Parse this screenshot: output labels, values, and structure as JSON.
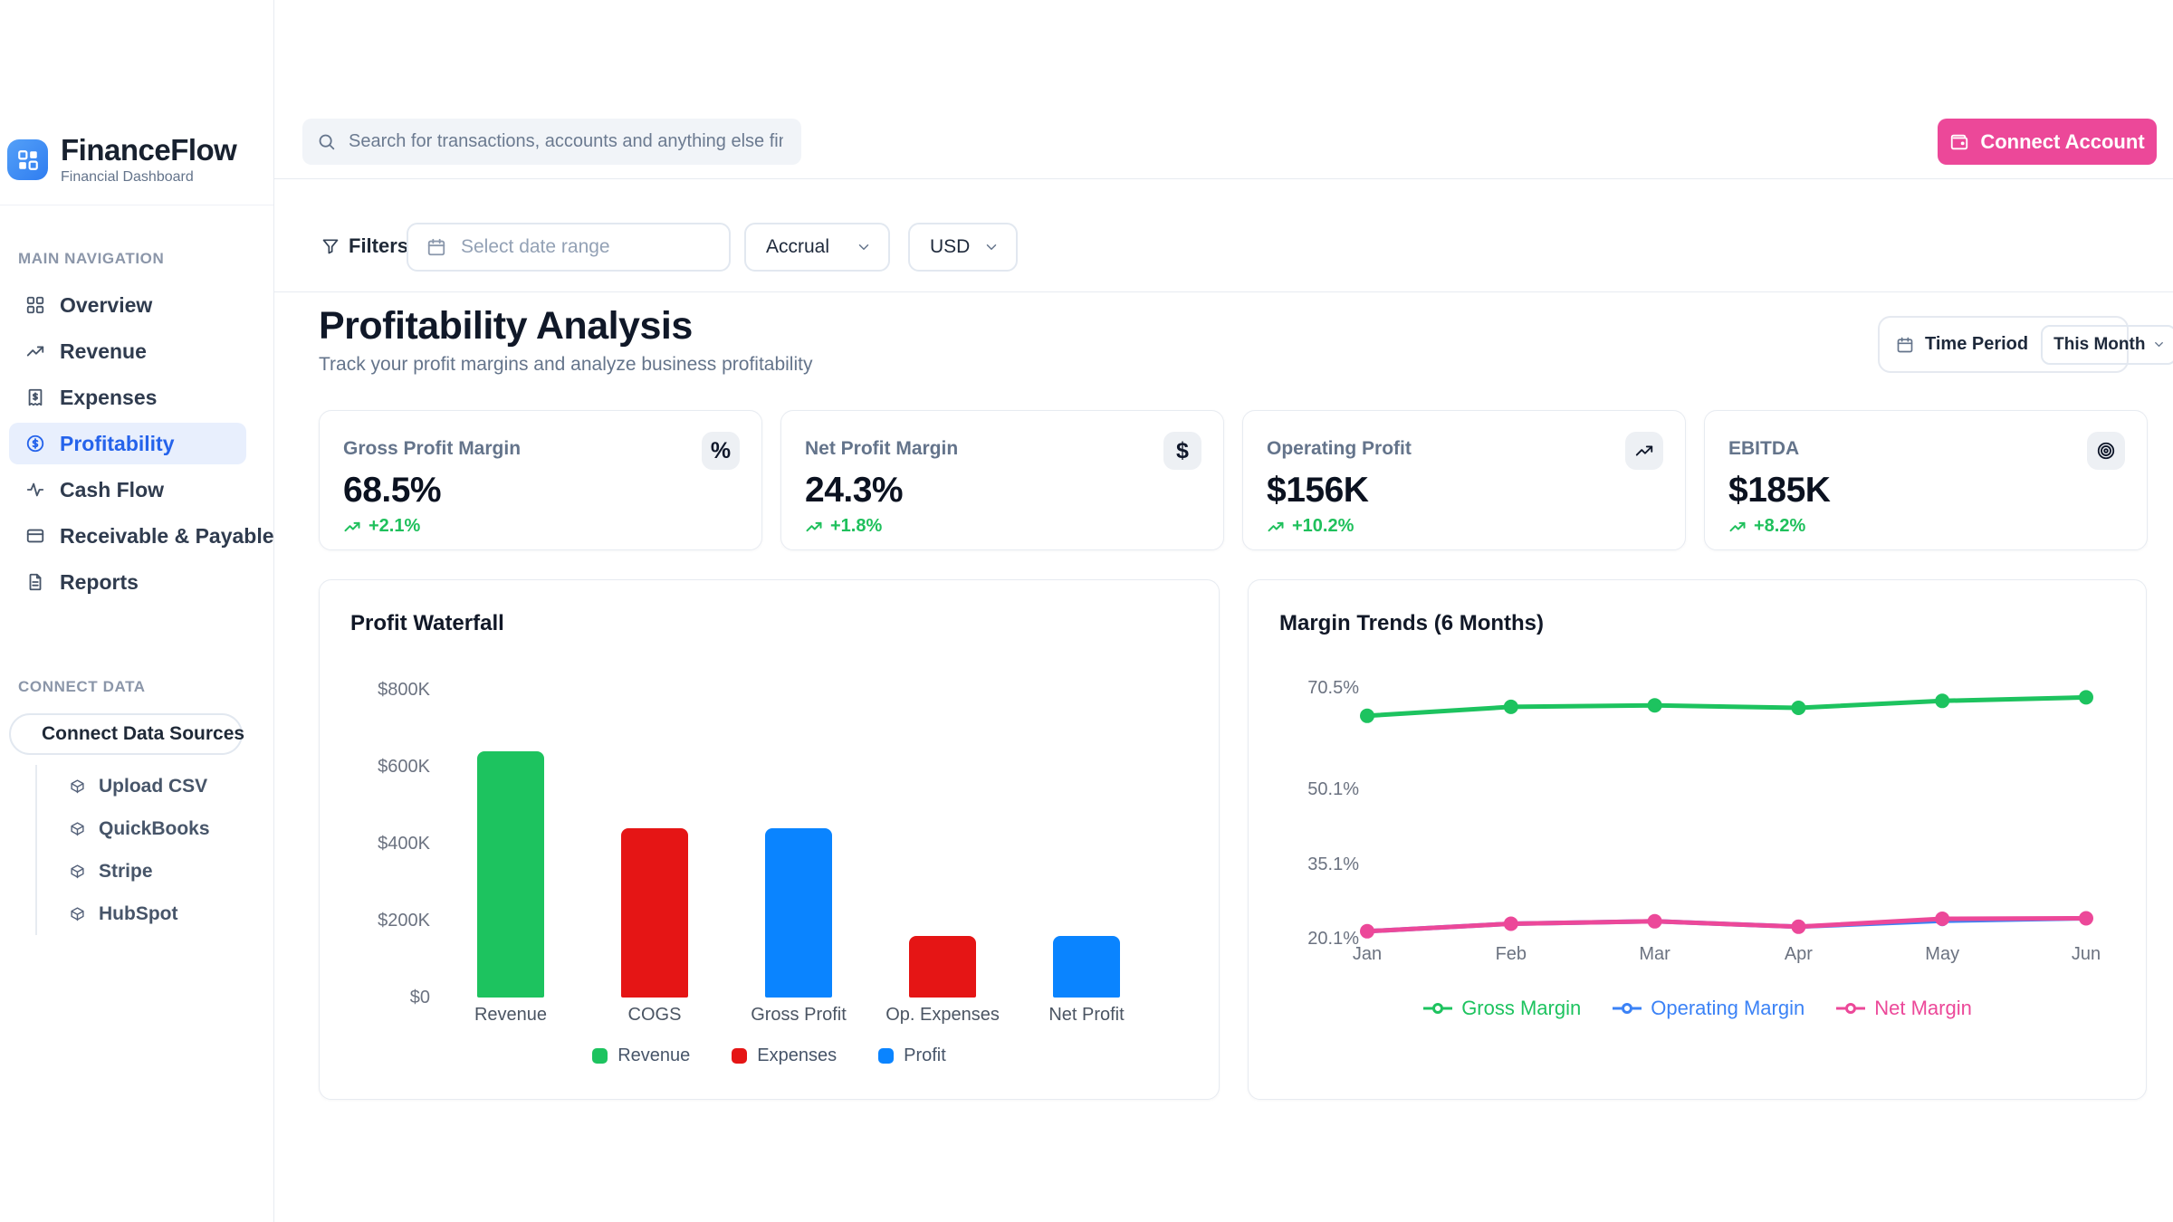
{
  "brand": {
    "name": "FinanceFlow",
    "tagline": "Financial Dashboard"
  },
  "topbar": {
    "search_placeholder": "Search for transactions, accounts and anything else financial",
    "connect_account_label": "Connect Account"
  },
  "sidebar": {
    "main_nav_label": "MAIN NAVIGATION",
    "items": [
      {
        "label": "Overview",
        "icon": "grid",
        "active": false
      },
      {
        "label": "Revenue",
        "icon": "trending-up",
        "active": false
      },
      {
        "label": "Expenses",
        "icon": "receipt",
        "active": false
      },
      {
        "label": "Profitability",
        "icon": "circle-dollar",
        "active": true
      },
      {
        "label": "Cash Flow",
        "icon": "activity",
        "active": false
      },
      {
        "label": "Receivable & Payable",
        "icon": "credit-card",
        "active": false
      },
      {
        "label": "Reports",
        "icon": "file",
        "active": false
      }
    ],
    "connect_data_label": "CONNECT DATA",
    "connect_sources_label": "Connect Data Sources",
    "sources": [
      {
        "label": "Upload CSV",
        "icon": "cube"
      },
      {
        "label": "QuickBooks",
        "icon": "cube"
      },
      {
        "label": "Stripe",
        "icon": "cube"
      },
      {
        "label": "HubSpot",
        "icon": "cube"
      }
    ]
  },
  "filters": {
    "filters_label": "Filters",
    "date_placeholder": "Select date range",
    "accounting_method": "Accrual",
    "currency": "USD"
  },
  "page": {
    "title": "Profitability Analysis",
    "subtitle": "Track your profit margins and analyze business profitability",
    "time_period_label": "Time Period",
    "time_period_value": "This Month"
  },
  "kpis": [
    {
      "label": "Gross Profit Margin",
      "value": "68.5%",
      "delta": "+2.1%",
      "icon": "percent"
    },
    {
      "label": "Net Profit Margin",
      "value": "24.3%",
      "delta": "+1.8%",
      "icon": "dollar"
    },
    {
      "label": "Operating Profit",
      "value": "$156K",
      "delta": "+10.2%",
      "icon": "trending-up"
    },
    {
      "label": "EBITDA",
      "value": "$185K",
      "delta": "+8.2%",
      "icon": "target"
    }
  ],
  "colors": {
    "accent_pink": "#ec4899",
    "brand_blue": "#3b82f6",
    "active_blue": "#2563eb",
    "positive_green": "#1fc05c",
    "bar_green": "#1dc35f",
    "bar_red": "#e51515",
    "bar_blue": "#0a84ff"
  },
  "chart_data": [
    {
      "type": "bar",
      "title": "Profit Waterfall",
      "categories": [
        "Revenue",
        "COGS",
        "Gross Profit",
        "Op. Expenses",
        "Net Profit"
      ],
      "values": [
        640000,
        440000,
        440000,
        160000,
        160000
      ],
      "bar_colors": [
        "#1dc35f",
        "#e51515",
        "#0a84ff",
        "#e51515",
        "#0a84ff"
      ],
      "ylim": [
        0,
        800000
      ],
      "y_ticks": [
        {
          "value": 800000,
          "label": "$800K"
        },
        {
          "value": 600000,
          "label": "$600K"
        },
        {
          "value": 400000,
          "label": "$400K"
        },
        {
          "value": 200000,
          "label": "$200K"
        },
        {
          "value": 0,
          "label": "$0"
        }
      ],
      "legend": [
        {
          "label": "Revenue",
          "color": "#1dc35f"
        },
        {
          "label": "Expenses",
          "color": "#e51515"
        },
        {
          "label": "Profit",
          "color": "#0a84ff"
        }
      ],
      "grid": false,
      "legend_position": "bottom"
    },
    {
      "type": "line",
      "title": "Margin Trends (6 Months)",
      "x": [
        "Jan",
        "Feb",
        "Mar",
        "Apr",
        "May",
        "Jun"
      ],
      "y_axis": {
        "unit": "%",
        "top_value": 70.5,
        "bottom_value": 20.1
      },
      "y_ticks": [
        {
          "value": 70.5,
          "label": "70.5%"
        },
        {
          "value": 50.1,
          "label": "50.1%"
        },
        {
          "value": 35.1,
          "label": "35.1%"
        },
        {
          "value": 20.1,
          "label": "20.1%"
        }
      ],
      "series": [
        {
          "name": "Gross Margin",
          "color": "#1dc35f",
          "values": [
            64.9,
            66.7,
            67.0,
            66.5,
            67.9,
            68.6
          ]
        },
        {
          "name": "Operating Margin",
          "color": "#3b82f6",
          "values": [
            21.6,
            23.1,
            23.6,
            22.5,
            23.7,
            24.2
          ]
        },
        {
          "name": "Net Margin",
          "color": "#ec4899",
          "values": [
            21.6,
            23.1,
            23.6,
            22.5,
            24.1,
            24.2
          ]
        }
      ],
      "grid": false,
      "legend_position": "bottom"
    }
  ]
}
